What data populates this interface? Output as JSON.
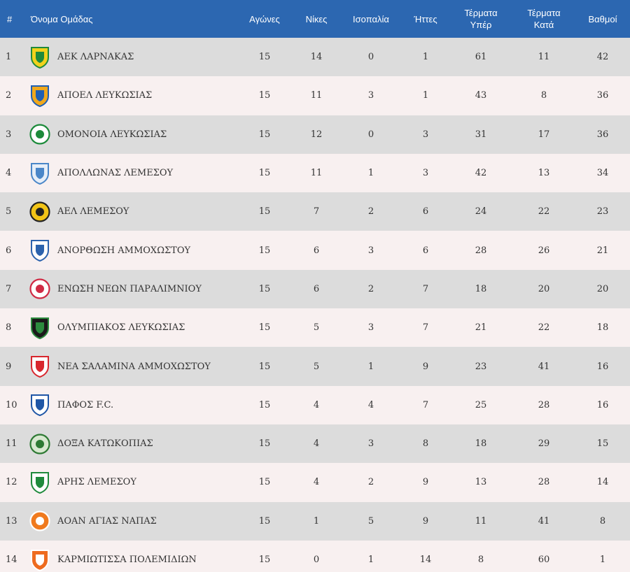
{
  "header": {
    "rank": "#",
    "team": "Όνομα Ομάδας",
    "played": "Αγώνες",
    "wins": "Νίκες",
    "draws": "Ισοπαλία",
    "losses": "Ήττες",
    "goals_for": [
      "Τέρματα",
      "Υπέρ"
    ],
    "goals_against": [
      "Τέρματα",
      "Κατά"
    ],
    "points": "Βαθμοί"
  },
  "rows": [
    {
      "rank": "1",
      "team": "ΑΕΚ ΛΑΡΝΑΚΑΣ",
      "played": "15",
      "wins": "14",
      "draws": "0",
      "losses": "1",
      "gf": "61",
      "ga": "11",
      "pts": "42",
      "logo": {
        "icon": "aek-larnaca-crest-icon",
        "shape": "shield",
        "color": "#f2d21b",
        "accent": "#1f8a3c"
      }
    },
    {
      "rank": "2",
      "team": "ΑΠΟΕΛ ΛΕΥΚΩΣΙΑΣ",
      "played": "15",
      "wins": "11",
      "draws": "3",
      "losses": "1",
      "gf": "43",
      "ga": "8",
      "pts": "36",
      "logo": {
        "icon": "apoel-crest-icon",
        "shape": "shield",
        "color": "#f0a81c",
        "accent": "#1e5fb4"
      }
    },
    {
      "rank": "3",
      "team": "ΟΜΟΝΟΙΑ ΛΕΥΚΩΣΙΑΣ",
      "played": "15",
      "wins": "12",
      "draws": "0",
      "losses": "3",
      "gf": "31",
      "ga": "17",
      "pts": "36",
      "logo": {
        "icon": "omonia-crest-icon",
        "shape": "circle",
        "color": "#ffffff",
        "accent": "#1c8a3a"
      }
    },
    {
      "rank": "4",
      "team": "ΑΠΟΛΛΩΝΑΣ ΛΕΜΕΣΟΥ",
      "played": "15",
      "wins": "11",
      "draws": "1",
      "losses": "3",
      "gf": "42",
      "ga": "13",
      "pts": "34",
      "logo": {
        "icon": "apollon-crest-icon",
        "shape": "shield",
        "color": "#e6eef8",
        "accent": "#4a86c8"
      }
    },
    {
      "rank": "5",
      "team": "ΑΕΛ ΛΕΜΕΣΟΥ",
      "played": "15",
      "wins": "7",
      "draws": "2",
      "losses": "6",
      "gf": "24",
      "ga": "22",
      "pts": "23",
      "logo": {
        "icon": "ael-crest-icon",
        "shape": "circle",
        "color": "#f2c417",
        "accent": "#222222"
      }
    },
    {
      "rank": "6",
      "team": "ΑΝΟΡΘΩΣΗ ΑΜΜΟΧΩΣΤΟΥ",
      "played": "15",
      "wins": "6",
      "draws": "3",
      "losses": "6",
      "gf": "28",
      "ga": "26",
      "pts": "21",
      "logo": {
        "icon": "anorthosis-crest-icon",
        "shape": "shield",
        "color": "#ffffff",
        "accent": "#2b62ad"
      }
    },
    {
      "rank": "7",
      "team": "ΕΝΩΣΗ ΝΕΩΝ ΠΑΡΑΛΙΜΝΙΟΥ",
      "played": "15",
      "wins": "6",
      "draws": "2",
      "losses": "7",
      "gf": "18",
      "ga": "20",
      "pts": "20",
      "logo": {
        "icon": "enp-crest-icon",
        "shape": "circle",
        "color": "#ffffff",
        "accent": "#d02a44"
      }
    },
    {
      "rank": "8",
      "team": "ΟΛΥΜΠΙΑΚΟΣ ΛΕΥΚΩΣΙΑΣ",
      "played": "15",
      "wins": "5",
      "draws": "3",
      "losses": "7",
      "gf": "21",
      "ga": "22",
      "pts": "18",
      "logo": {
        "icon": "olympiakos-nicosia-crest-icon",
        "shape": "shield",
        "color": "#1a1a1a",
        "accent": "#2c8c3e"
      }
    },
    {
      "rank": "9",
      "team": "ΝΕΑ ΣΑΛΑΜΙΝΑ ΑΜΜΟΧΩΣΤΟΥ",
      "played": "15",
      "wins": "5",
      "draws": "1",
      "losses": "9",
      "gf": "23",
      "ga": "41",
      "pts": "16",
      "logo": {
        "icon": "nea-salamis-crest-icon",
        "shape": "shield",
        "color": "#ffffff",
        "accent": "#d8262d"
      }
    },
    {
      "rank": "10",
      "team": "ΠΑΦΟΣ F.C.",
      "played": "15",
      "wins": "4",
      "draws": "4",
      "losses": "7",
      "gf": "25",
      "ga": "28",
      "pts": "16",
      "logo": {
        "icon": "pafos-fc-crest-icon",
        "shape": "shield",
        "color": "#ffffff",
        "accent": "#1f56a6"
      }
    },
    {
      "rank": "11",
      "team": "ΔΟΞΑ ΚΑΤΩΚΟΠΙΑΣ",
      "played": "15",
      "wins": "4",
      "draws": "3",
      "losses": "8",
      "gf": "18",
      "ga": "29",
      "pts": "15",
      "logo": {
        "icon": "doxa-crest-icon",
        "shape": "circle",
        "color": "#d8e8d0",
        "accent": "#2e7a34"
      }
    },
    {
      "rank": "12",
      "team": "ΑΡΗΣ ΛΕΜΕΣΟΥ",
      "played": "15",
      "wins": "4",
      "draws": "2",
      "losses": "9",
      "gf": "13",
      "ga": "28",
      "pts": "14",
      "logo": {
        "icon": "aris-limassol-crest-icon",
        "shape": "shield",
        "color": "#ffffff",
        "accent": "#1f8a3c"
      }
    },
    {
      "rank": "13",
      "team": "ΑΟΑΝ ΑΓΙΑΣ ΝΑΠΑΣ",
      "played": "15",
      "wins": "1",
      "draws": "5",
      "losses": "9",
      "gf": "11",
      "ga": "41",
      "pts": "8",
      "logo": {
        "icon": "ayia-napa-crest-icon",
        "shape": "circle",
        "color": "#f07a1e",
        "accent": "#ffffff"
      }
    },
    {
      "rank": "14",
      "team": "ΚΑΡΜΙΩΤΙΣΣΑ ΠΟΛΕΜΙΔΙΩΝ",
      "played": "15",
      "wins": "0",
      "draws": "1",
      "losses": "14",
      "gf": "8",
      "ga": "60",
      "pts": "1",
      "logo": {
        "icon": "karmiotissa-crest-icon",
        "shape": "shield",
        "color": "#ee6b1f",
        "accent": "#ffffff"
      }
    }
  ]
}
